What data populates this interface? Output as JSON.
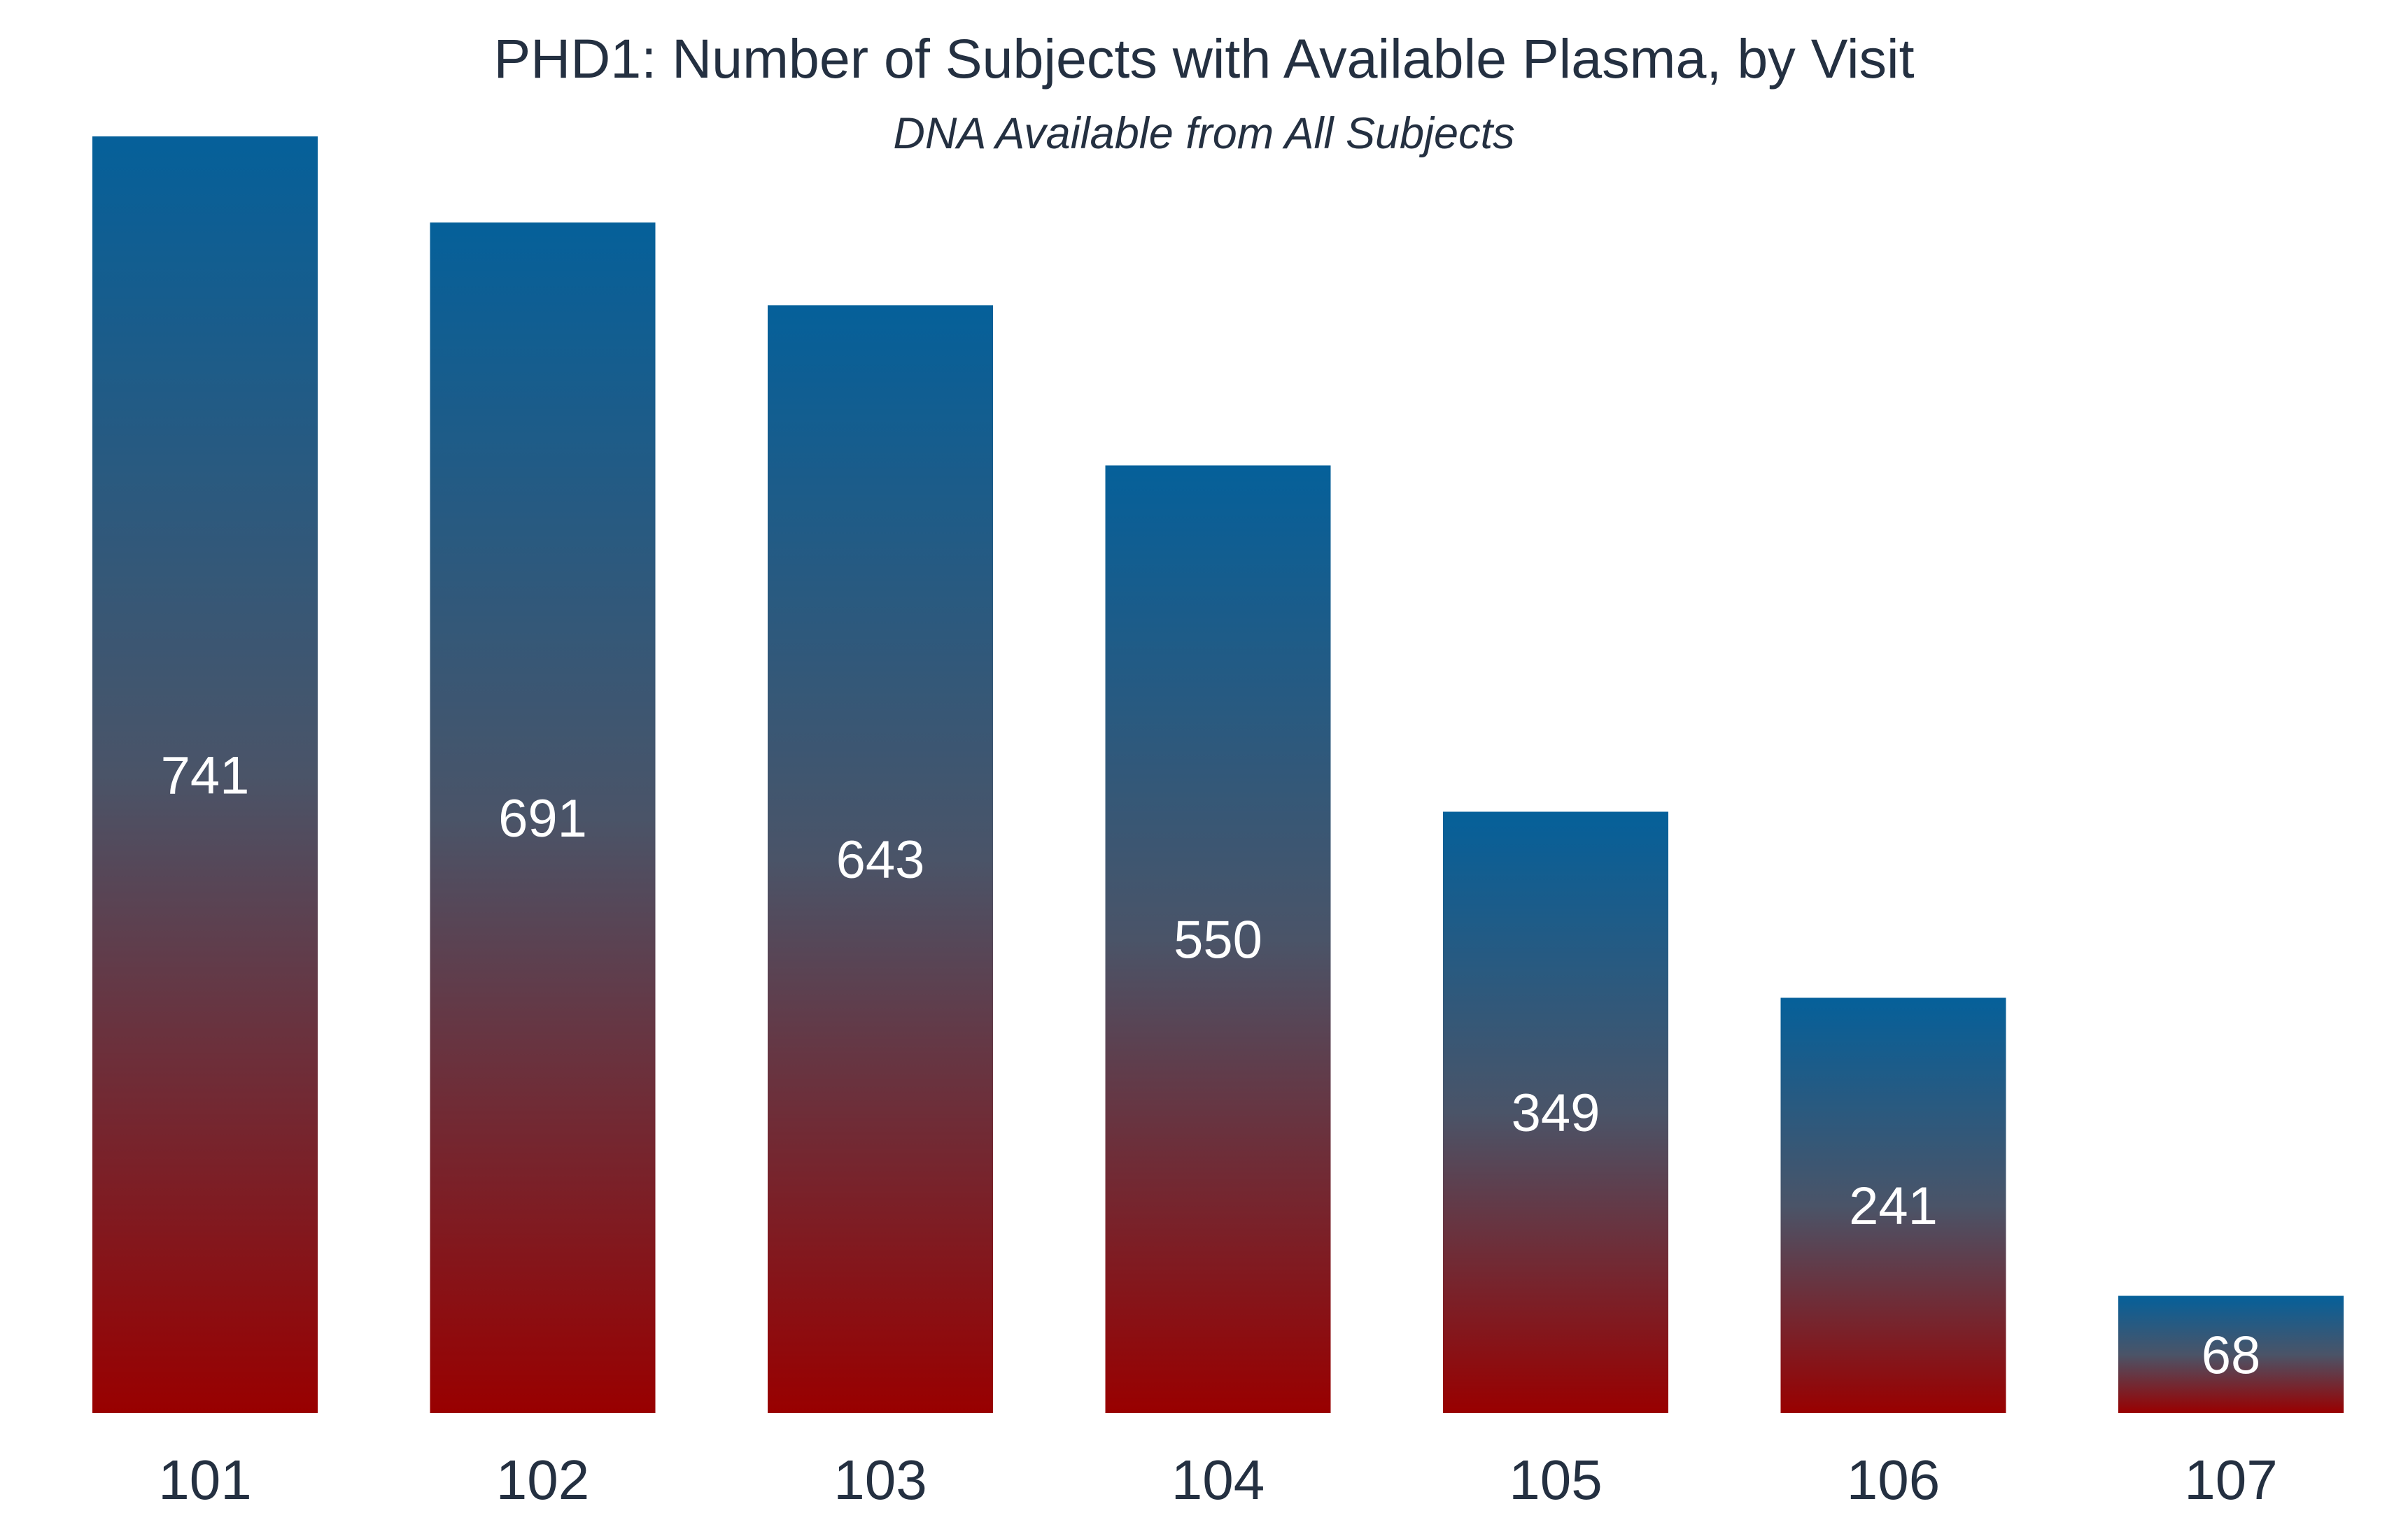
{
  "chart_data": {
    "type": "bar",
    "title": "PHD1: Number of Subjects with Available Plasma, by Visit",
    "subtitle": "DNA Available from All Subjects",
    "xlabel": "",
    "ylabel": "",
    "categories": [
      "101",
      "102",
      "103",
      "104",
      "105",
      "106",
      "107"
    ],
    "values": [
      741,
      691,
      643,
      550,
      349,
      241,
      68
    ],
    "ylim": [
      0,
      741
    ],
    "grid": false,
    "legend": "none",
    "data_labels": true,
    "colors": {
      "bar_top": "#05609A",
      "bar_mid": "#4A5468",
      "bar_bottom": "#990000",
      "data_label": "#FFFFFF",
      "tick_label": "#243041"
    }
  }
}
